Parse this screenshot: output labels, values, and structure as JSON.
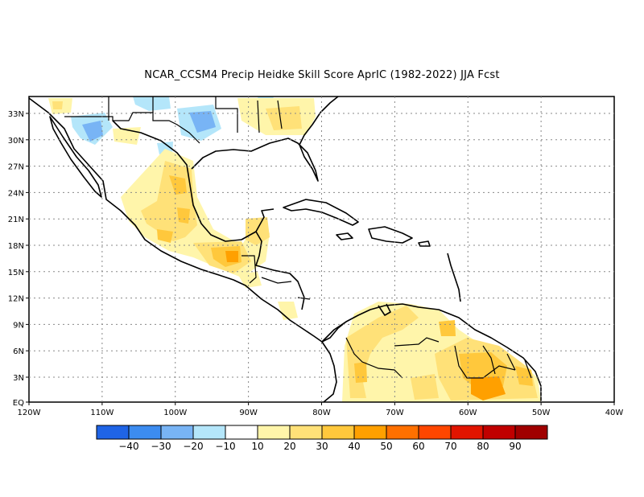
{
  "title": "NCAR_CCSM4 Precip Heidke Skill Score AprIC (1982-2022) JJA Fcst",
  "map": {
    "lat_labels": [
      "33N",
      "30N",
      "27N",
      "24N",
      "21N",
      "18N",
      "15N",
      "12N",
      "9N",
      "6N",
      "3N",
      "EQ"
    ],
    "lon_labels": [
      "120W",
      "110W",
      "100W",
      "90W",
      "80W",
      "70W",
      "60W",
      "50W",
      "40W"
    ]
  },
  "colorbar": {
    "colors": [
      "#1f64e6",
      "#3c8cf0",
      "#78b4f5",
      "#b4e6fa",
      "#ffffff",
      "#fff5aa",
      "#ffe178",
      "#ffc83c",
      "#ffa000",
      "#ff7000",
      "#ff4600",
      "#e11400",
      "#c00000",
      "#a00000"
    ],
    "labels": [
      "-40",
      "-30",
      "-20",
      "-10",
      "10",
      "20",
      "30",
      "40",
      "50",
      "60",
      "70",
      "80",
      "90"
    ]
  }
}
